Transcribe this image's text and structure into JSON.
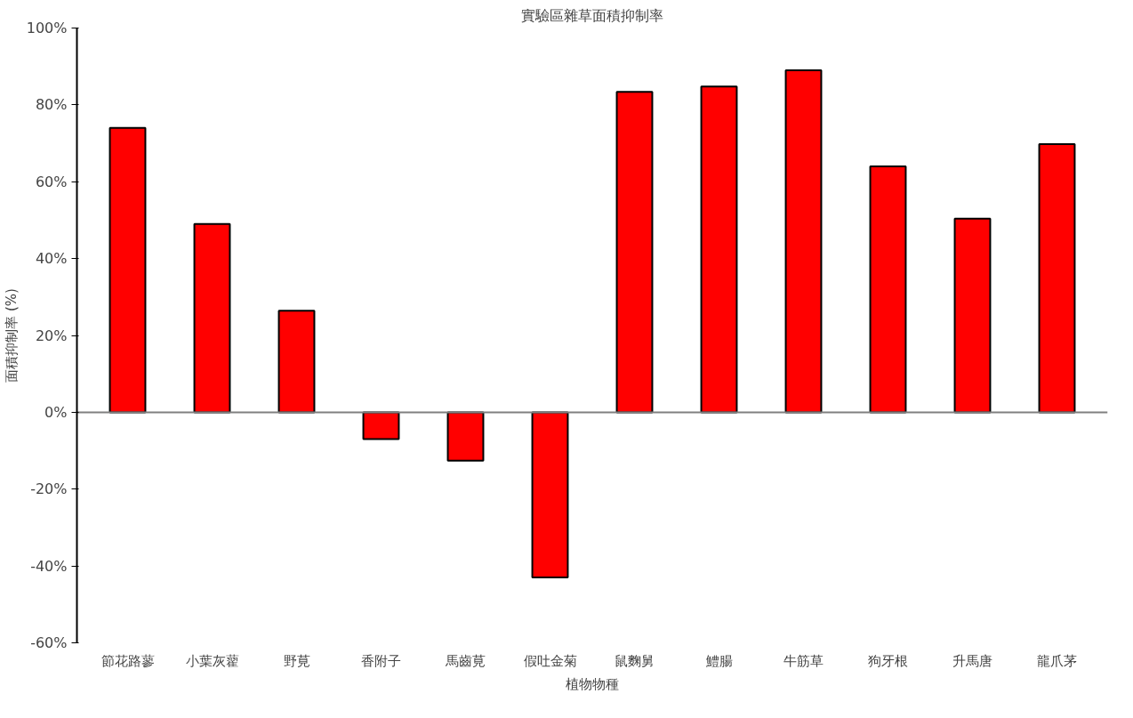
{
  "chart_data": {
    "type": "bar",
    "title": "實驗區雜草面積抑制率",
    "xlabel": "植物物種",
    "ylabel": "面積抑制率 (%)",
    "categories": [
      "節花路蓼",
      "小葉灰藋",
      "野莧",
      "香附子",
      "馬齒莧",
      "假吐金菊",
      "鼠麴舅",
      "鱧腸",
      "牛筋草",
      "狗牙根",
      "升馬唐",
      "龍爪茅"
    ],
    "values": [
      74,
      49,
      26.4,
      -7,
      -12.6,
      -43,
      83.4,
      84.8,
      89,
      64,
      50.4,
      69.8
    ],
    "color": "#ff0000",
    "ylim": [
      -60,
      100
    ],
    "yticks": [
      {
        "value": -60,
        "label": "-60%"
      },
      {
        "value": -40,
        "label": "-40%"
      },
      {
        "value": -20,
        "label": "-20%"
      },
      {
        "value": 0,
        "label": "0%"
      },
      {
        "value": 20,
        "label": "20%"
      },
      {
        "value": 40,
        "label": "40%"
      },
      {
        "value": 60,
        "label": "60%"
      },
      {
        "value": 80,
        "label": "80%"
      },
      {
        "value": 100,
        "label": "100%"
      }
    ]
  }
}
